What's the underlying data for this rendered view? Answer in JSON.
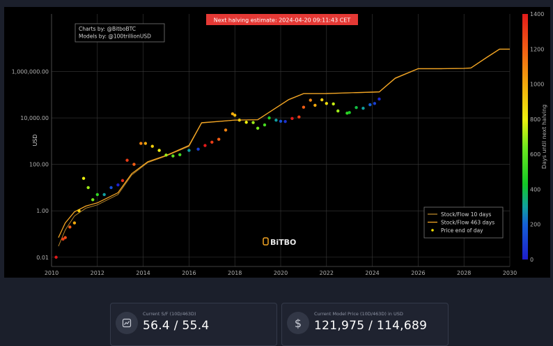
{
  "chart_data": {
    "type": "line",
    "title": "",
    "xlabel": "",
    "ylabel": "USD",
    "y_scale": "log",
    "xlim": [
      2010,
      2030
    ],
    "ylim": [
      0.004,
      300000000
    ],
    "x_ticks": [
      2010,
      2012,
      2014,
      2016,
      2018,
      2020,
      2022,
      2024,
      2026,
      2028,
      2030
    ],
    "x_tick_labels": [
      "2010",
      "2012",
      "2014",
      "2016",
      "2018",
      "2020",
      "2022",
      "2024",
      "2026",
      "2028",
      "2030"
    ],
    "y_ticks": [
      0.01,
      1,
      100,
      10000,
      1000000
    ],
    "y_tick_labels": [
      "0.01",
      "1.00",
      "100.00",
      "10,000.00",
      "1,000,000.00"
    ],
    "grid": true,
    "legend_position": "bottom-right",
    "series": [
      {
        "name": "Stock/Flow 10 days",
        "color": "#b8862a",
        "x": [
          2010.3,
          2010.6,
          2011.0,
          2011.5,
          2012.0,
          2012.9,
          2013.5,
          2014.2,
          2015.0,
          2016.0,
          2016.55,
          2017.3,
          2018.0,
          2019.0,
          2020.35,
          2021.0,
          2022.0,
          2023.0,
          2024.3,
          2025.0,
          2026.0,
          2027.0,
          2028.0,
          2028.3,
          2029.0,
          2029.55,
          2030.0
        ],
        "y": [
          0.03,
          0.15,
          0.6,
          1.3,
          1.8,
          5,
          35,
          120,
          230,
          600,
          6000,
          7000,
          8000,
          8300,
          60000,
          110000,
          110000,
          120000,
          130000,
          500000,
          1300000,
          1300000,
          1350000,
          1400000,
          4000000,
          9000000,
          9000000
        ]
      },
      {
        "name": "Stock/Flow 463 days",
        "color": "#f5a623",
        "x": [
          2010.3,
          2010.6,
          2011.0,
          2011.5,
          2012.0,
          2012.9,
          2013.5,
          2014.2,
          2015.0,
          2016.0,
          2016.55,
          2017.3,
          2018.0,
          2019.0,
          2020.35,
          2021.0,
          2022.0,
          2023.0,
          2024.3,
          2025.0,
          2026.0,
          2027.0,
          2028.0,
          2028.3,
          2029.0,
          2029.55,
          2030.0
        ],
        "y": [
          0.07,
          0.3,
          0.9,
          1.6,
          2.2,
          6,
          40,
          130,
          240,
          650,
          6200,
          7100,
          8100,
          8400,
          62000,
          112000,
          113000,
          121000,
          132000,
          520000,
          1320000,
          1320000,
          1360000,
          1420000,
          4100000,
          9200000,
          9200000
        ]
      },
      {
        "name": "Price end of day",
        "type": "scatter",
        "color_by": "Days until next halving",
        "x": [
          2010.2,
          2010.5,
          2010.6,
          2010.8,
          2011.0,
          2011.2,
          2011.4,
          2011.6,
          2011.8,
          2012.0,
          2012.3,
          2012.6,
          2012.9,
          2013.1,
          2013.3,
          2013.6,
          2013.9,
          2014.1,
          2014.4,
          2014.7,
          2015.0,
          2015.3,
          2015.6,
          2016.0,
          2016.4,
          2016.7,
          2017.0,
          2017.3,
          2017.6,
          2017.9,
          2018.0,
          2018.2,
          2018.5,
          2018.8,
          2019.0,
          2019.3,
          2019.5,
          2019.8,
          2020.0,
          2020.2,
          2020.5,
          2020.8,
          2021.0,
          2021.3,
          2021.5,
          2021.8,
          2022.0,
          2022.3,
          2022.5,
          2022.9,
          2023.0,
          2023.3,
          2023.6,
          2023.9,
          2024.1,
          2024.3
        ],
        "y": [
          0.01,
          0.06,
          0.07,
          0.2,
          0.3,
          1,
          25,
          10,
          3,
          5,
          5,
          10,
          13,
          20,
          150,
          100,
          800,
          800,
          600,
          400,
          250,
          230,
          260,
          400,
          450,
          650,
          900,
          1200,
          3000,
          15000,
          13000,
          8000,
          6500,
          6300,
          3600,
          5000,
          10000,
          8000,
          7200,
          7000,
          9500,
          11000,
          29000,
          58000,
          35000,
          60000,
          42000,
          40000,
          20000,
          16000,
          17000,
          28000,
          26000,
          37000,
          42000,
          65000
        ],
        "days_until_next_halving": [
          1400,
          1300,
          1250,
          1200,
          1000,
          900,
          800,
          700,
          650,
          500,
          300,
          150,
          10,
          1350,
          1300,
          1200,
          1100,
          1000,
          900,
          800,
          700,
          600,
          550,
          300,
          100,
          1400,
          1300,
          1200,
          1100,
          1000,
          950,
          900,
          800,
          700,
          650,
          550,
          450,
          300,
          150,
          60,
          1400,
          1300,
          1200,
          1100,
          1000,
          900,
          850,
          750,
          700,
          500,
          450,
          400,
          300,
          200,
          100,
          30
        ]
      }
    ],
    "colorbar": {
      "label": "Days until next halving",
      "min": 0,
      "max": 1400,
      "ticks": [
        0,
        200,
        400,
        600,
        800,
        1000,
        1200,
        1400
      ],
      "tick_labels": [
        "0",
        "200",
        "400",
        "600",
        "800",
        "1000",
        "1200",
        "1400"
      ]
    }
  },
  "banner": {
    "text": "Next halving estimate: 2024-04-20 09:11:43 CET",
    "color": "#e53935"
  },
  "credits": {
    "line1": "Charts by: @BitboBTC",
    "line2": "Models by: @100trillionUSD"
  },
  "watermark": "BiTBO",
  "legend": {
    "items": [
      {
        "label": "Stock/Flow 10 days",
        "color": "#b8862a",
        "kind": "line"
      },
      {
        "label": "Stock/Flow 463 days",
        "color": "#f5a623",
        "kind": "line"
      },
      {
        "label": "Price end of day",
        "color": "#f5e100",
        "kind": "dot"
      }
    ]
  },
  "cards": [
    {
      "label": "Current S/F (10D/463D)",
      "value": "56.4 / 55.4",
      "icon": "chart-box-icon"
    },
    {
      "label": "Current Model Price (10D/463D) in USD",
      "value": "121,975 / 114,689",
      "icon": "dollar-icon"
    }
  ]
}
